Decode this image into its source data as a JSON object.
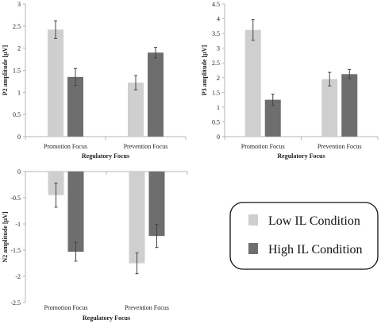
{
  "colors": {
    "low": "#cfcfcf",
    "high": "#6e6e6e",
    "axis": "#b5b5b5",
    "errbar": "#444444"
  },
  "legend": {
    "items": [
      {
        "label": "Low IL Condition",
        "color": "#cfcfcf"
      },
      {
        "label": "High IL Condition",
        "color": "#6e6e6e"
      }
    ]
  },
  "chart_data": [
    {
      "type": "bar",
      "ylabel": "P2 amplitude [µV]",
      "xlabel": "Regulatory Focus",
      "ylim": [
        0,
        3
      ],
      "yticks": [
        0,
        0.5,
        1,
        1.5,
        2,
        2.5,
        3
      ],
      "ytick_labels": [
        "0",
        "0.5",
        "1",
        "1.5",
        "2",
        "2.5",
        "3"
      ],
      "categories": [
        "Promotion Focus",
        "Prevention Focus"
      ],
      "series": [
        {
          "name": "Low IL Condition",
          "values": [
            2.42,
            1.22
          ],
          "errors": [
            0.2,
            0.16
          ]
        },
        {
          "name": "High IL Condition",
          "values": [
            1.35,
            1.9
          ],
          "errors": [
            0.19,
            0.12
          ]
        }
      ]
    },
    {
      "type": "bar",
      "ylabel": "P3 amplitude [µV]",
      "xlabel": "Regulatory Focus",
      "ylim": [
        0,
        4.5
      ],
      "yticks": [
        0,
        0.5,
        1,
        1.5,
        2,
        2.5,
        3,
        3.5,
        4,
        4.5
      ],
      "ytick_labels": [
        "0",
        "0.5",
        "1",
        "1.5",
        "2",
        "2.5",
        "3",
        "3.5",
        "4",
        "4.5"
      ],
      "categories": [
        "Promotion Focus",
        "Prevention Focus"
      ],
      "series": [
        {
          "name": "Low IL Condition",
          "values": [
            3.62,
            1.95
          ],
          "errors": [
            0.35,
            0.23
          ]
        },
        {
          "name": "High IL Condition",
          "values": [
            1.25,
            2.12
          ],
          "errors": [
            0.19,
            0.16
          ]
        }
      ]
    },
    {
      "type": "bar",
      "ylabel": "N2 amplitude [µV]",
      "xlabel": "Regulatory Focus",
      "ylim": [
        -2.5,
        0
      ],
      "yticks": [
        0,
        -0.5,
        -1,
        -1.5,
        -2,
        -2.5
      ],
      "ytick_labels": [
        "0",
        "-0.5",
        "-1",
        "-1.5",
        "-2",
        "-2.5"
      ],
      "categories": [
        "Promotion Focus",
        "Prevention Focus"
      ],
      "series": [
        {
          "name": "Low IL Condition",
          "values": [
            -0.45,
            -1.75
          ],
          "errors": [
            0.23,
            0.2
          ]
        },
        {
          "name": "High IL Condition",
          "values": [
            -1.53,
            -1.23
          ],
          "errors": [
            0.18,
            0.22
          ]
        }
      ]
    }
  ]
}
